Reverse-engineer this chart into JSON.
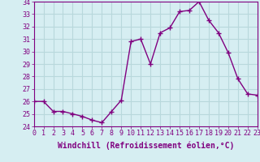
{
  "x": [
    0,
    1,
    2,
    3,
    4,
    5,
    6,
    7,
    8,
    9,
    10,
    11,
    12,
    13,
    14,
    15,
    16,
    17,
    18,
    19,
    20,
    21,
    22,
    23
  ],
  "y": [
    26.0,
    26.0,
    25.2,
    25.2,
    25.0,
    24.8,
    24.5,
    24.3,
    25.2,
    26.1,
    30.8,
    31.0,
    29.0,
    31.5,
    31.9,
    33.2,
    33.3,
    34.0,
    32.5,
    31.5,
    29.9,
    27.8,
    26.6,
    26.5
  ],
  "ylim": [
    24,
    34
  ],
  "yticks": [
    24,
    25,
    26,
    27,
    28,
    29,
    30,
    31,
    32,
    33,
    34
  ],
  "xlim": [
    0,
    23
  ],
  "xticks": [
    0,
    1,
    2,
    3,
    4,
    5,
    6,
    7,
    8,
    9,
    10,
    11,
    12,
    13,
    14,
    15,
    16,
    17,
    18,
    19,
    20,
    21,
    22,
    23
  ],
  "xlabel": "Windchill (Refroidissement éolien,°C)",
  "line_color": "#800080",
  "marker": "+",
  "bg_color": "#d6eef2",
  "grid_color": "#b8d8dc",
  "tick_label_fontsize": 6.0,
  "xlabel_fontsize": 7.0,
  "line_width": 1.0,
  "marker_size": 4
}
